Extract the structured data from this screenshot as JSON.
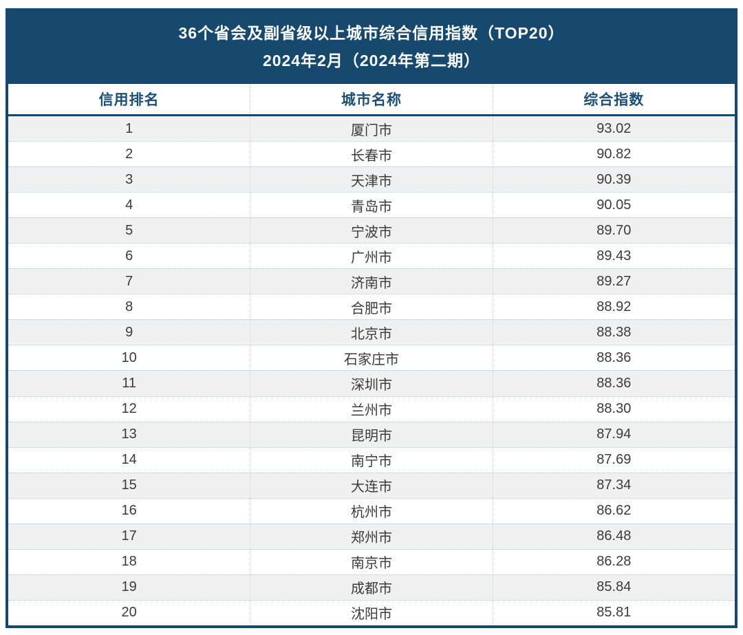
{
  "colors": {
    "banner_bg": "#17496e",
    "border": "#16486d",
    "header_text": "#1c4f78",
    "row_alt_bg": "#f0f0f1",
    "row_text": "#3b3b3b",
    "divider_dotted": "#b2c1ce"
  },
  "chart_data": {
    "type": "table",
    "title": "36个省会及副省级以上城市综合信用指数（TOP20）",
    "subtitle": "2024年2月（2024年第二期）",
    "columns": [
      "信用排名",
      "城市名称",
      "综合指数"
    ],
    "rows": [
      {
        "rank": "1",
        "city": "厦门市",
        "index": "93.02"
      },
      {
        "rank": "2",
        "city": "长春市",
        "index": "90.82"
      },
      {
        "rank": "3",
        "city": "天津市",
        "index": "90.39"
      },
      {
        "rank": "4",
        "city": "青岛市",
        "index": "90.05"
      },
      {
        "rank": "5",
        "city": "宁波市",
        "index": "89.70"
      },
      {
        "rank": "6",
        "city": "广州市",
        "index": "89.43"
      },
      {
        "rank": "7",
        "city": "济南市",
        "index": "89.27"
      },
      {
        "rank": "8",
        "city": "合肥市",
        "index": "88.92"
      },
      {
        "rank": "9",
        "city": "北京市",
        "index": "88.38"
      },
      {
        "rank": "10",
        "city": "石家庄市",
        "index": "88.36"
      },
      {
        "rank": "11",
        "city": "深圳市",
        "index": "88.36"
      },
      {
        "rank": "12",
        "city": "兰州市",
        "index": "88.30"
      },
      {
        "rank": "13",
        "city": "昆明市",
        "index": "87.94"
      },
      {
        "rank": "14",
        "city": "南宁市",
        "index": "87.69"
      },
      {
        "rank": "15",
        "city": "大连市",
        "index": "87.34"
      },
      {
        "rank": "16",
        "city": "杭州市",
        "index": "86.62"
      },
      {
        "rank": "17",
        "city": "郑州市",
        "index": "86.48"
      },
      {
        "rank": "18",
        "city": "南京市",
        "index": "86.28"
      },
      {
        "rank": "19",
        "city": "成都市",
        "index": "85.84"
      },
      {
        "rank": "20",
        "city": "沈阳市",
        "index": "85.81"
      }
    ]
  }
}
